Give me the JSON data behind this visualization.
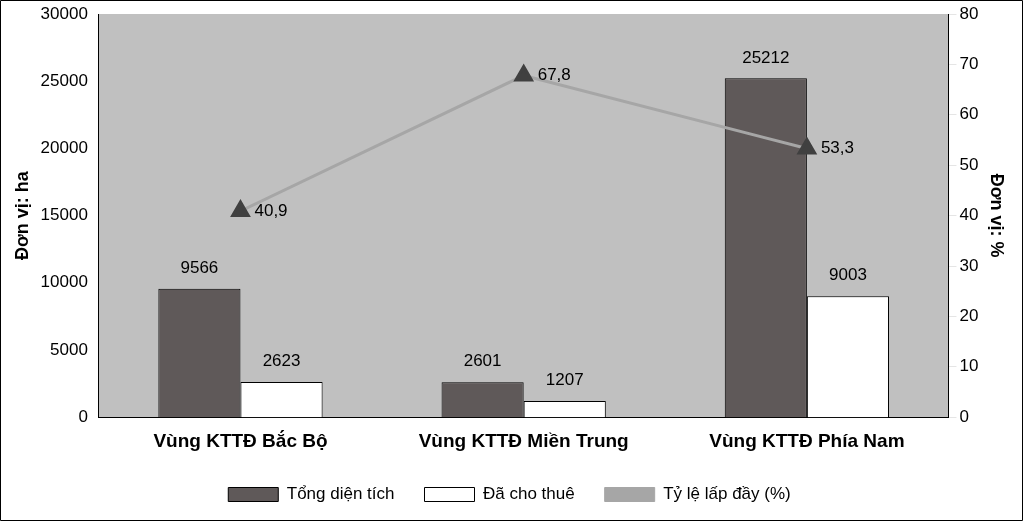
{
  "chart_data": {
    "type": "bar",
    "ylabel": "Đơn vị: ha",
    "y2label": "Đơn vị: %",
    "categories": [
      "Vùng KTTĐ Bắc Bộ",
      "Vùng KTTĐ Miền Trung",
      "Vùng KTTĐ Phía Nam"
    ],
    "series": [
      {
        "name": "Tổng diện tích",
        "color": "#5f5959",
        "values": [
          9566,
          2601,
          25212
        ],
        "value_labels": [
          "9566",
          "2601",
          "25212"
        ]
      },
      {
        "name": "Đã cho thuê",
        "color": "#ffffff",
        "values": [
          2623,
          1207,
          9003
        ],
        "value_labels": [
          "2623",
          "1207",
          "9003"
        ]
      },
      {
        "name": "Tỷ lệ lấp đầy (%)",
        "type": "line",
        "axis": "y2",
        "color": "#a6a6a6",
        "values": [
          40.9,
          67.8,
          53.3
        ],
        "value_labels": [
          "40,9",
          "67,8",
          "53,3"
        ]
      }
    ],
    "ylim": [
      0,
      30000
    ],
    "yticks": [
      0,
      5000,
      10000,
      15000,
      20000,
      25000,
      30000
    ],
    "y2lim": [
      0,
      80
    ],
    "y2ticks": [
      0,
      10,
      20,
      30,
      40,
      50,
      60,
      70,
      80
    ],
    "legend": "bottom",
    "marker": "triangle",
    "line_style": "solid"
  }
}
